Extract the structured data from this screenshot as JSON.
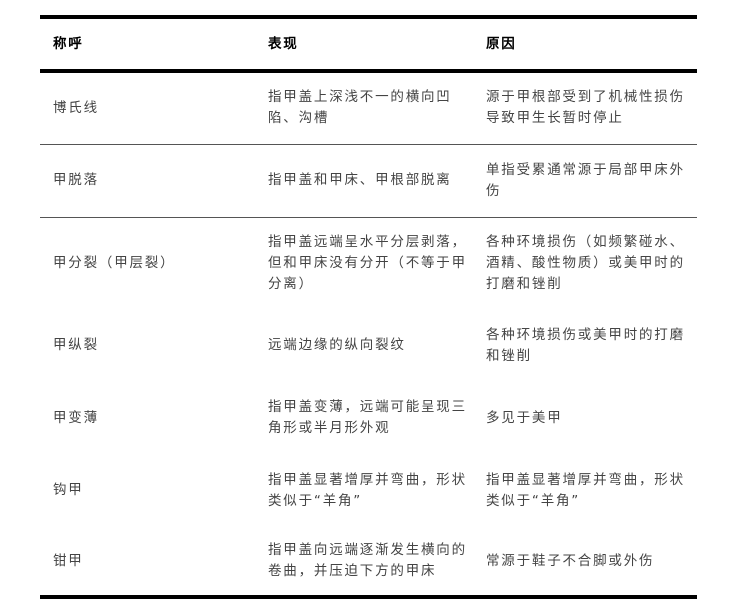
{
  "table": {
    "headers": [
      "称呼",
      "表现",
      "原因"
    ],
    "rows": [
      [
        "博氏线",
        "指甲盖上深浅不一的横向凹陷、沟槽",
        "源于甲根部受到了机械性损伤导致甲生长暂时停止"
      ],
      [
        "甲脱落",
        "指甲盖和甲床、甲根部脱离",
        "单指受累通常源于局部甲床外伤"
      ],
      [
        "甲分裂（甲层裂）",
        "指甲盖远端呈水平分层剥落，但和甲床没有分开（不等于甲分离）",
        "各种环境损伤（如频繁碰水、酒精、酸性物质）或美甲时的打磨和锉削"
      ],
      [
        "甲纵裂",
        "远端边缘的纵向裂纹",
        "各种环境损伤或美甲时的打磨和锉削"
      ],
      [
        "甲变薄",
        "指甲盖变薄，远端可能呈现三角形或半月形外观",
        "多见于美甲"
      ],
      [
        "钩甲",
        "指甲盖显著增厚并弯曲，形状类似于“羊角”",
        "指甲盖显著增厚并弯曲，形状类似于“羊角”"
      ],
      [
        "钳甲",
        "指甲盖向远端逐渐发生横向的卷曲，并压迫下方的甲床",
        "常源于鞋子不合脚或外伤"
      ]
    ]
  }
}
